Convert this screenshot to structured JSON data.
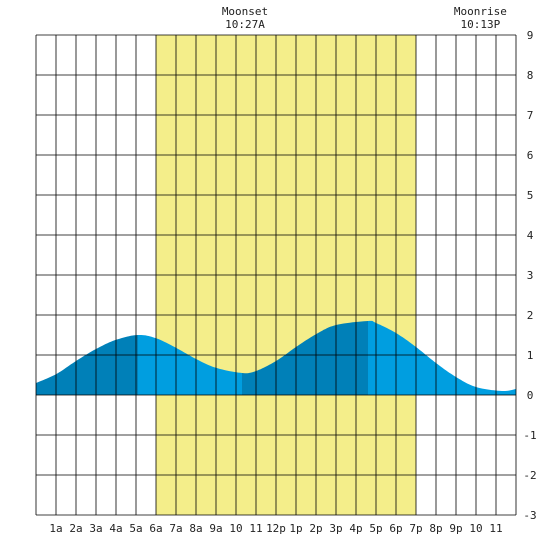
{
  "moon_events": [
    {
      "label": "Moonset",
      "time": "10:27A",
      "hour": 10.45
    },
    {
      "label": "Moonrise",
      "time": "10:13P",
      "hour": 22.22
    }
  ],
  "chart_data": {
    "type": "area",
    "title": "",
    "xlabel": "",
    "ylabel": "",
    "xlim": [
      0,
      24
    ],
    "ylim": [
      -3,
      9
    ],
    "grid": true,
    "x_tick_labels": [
      "1a",
      "2a",
      "3a",
      "4a",
      "5a",
      "6a",
      "7a",
      "8a",
      "9a",
      "10",
      "11",
      "12p",
      "1p",
      "2p",
      "3p",
      "4p",
      "5p",
      "6p",
      "7p",
      "8p",
      "9p",
      "10",
      "11"
    ],
    "y_tick_labels": [
      "9",
      "8",
      "7",
      "6",
      "5",
      "4",
      "3",
      "2",
      "1",
      "0",
      "-1",
      "-2",
      "-3"
    ],
    "daylight": {
      "start": 6.0,
      "end": 19.0
    },
    "tide_extrema": [
      {
        "type": "high",
        "time": 5.1,
        "height": 1.5
      },
      {
        "type": "low",
        "time": 10.3,
        "height": 0.55
      },
      {
        "type": "high",
        "time": 16.6,
        "height": 1.85
      },
      {
        "type": "low",
        "time": 23.3,
        "height": 0.1
      }
    ],
    "tide_series": {
      "x": [
        0,
        1,
        2,
        3,
        4,
        5.1,
        6,
        7,
        8,
        9,
        10.3,
        11,
        12,
        13,
        14,
        15,
        16.6,
        17,
        18,
        19,
        20,
        21,
        22,
        23.3,
        24
      ],
      "y": [
        0.3,
        0.52,
        0.85,
        1.15,
        1.38,
        1.5,
        1.42,
        1.18,
        0.9,
        0.68,
        0.55,
        0.6,
        0.85,
        1.2,
        1.52,
        1.75,
        1.85,
        1.8,
        1.55,
        1.2,
        0.8,
        0.45,
        0.2,
        0.1,
        0.15
      ]
    }
  },
  "colors": {
    "daylight": "#f4ee8a",
    "tide_dark": "#0080b8",
    "tide_light": "#009ee0",
    "grid": "#000000",
    "text": "#222222"
  }
}
